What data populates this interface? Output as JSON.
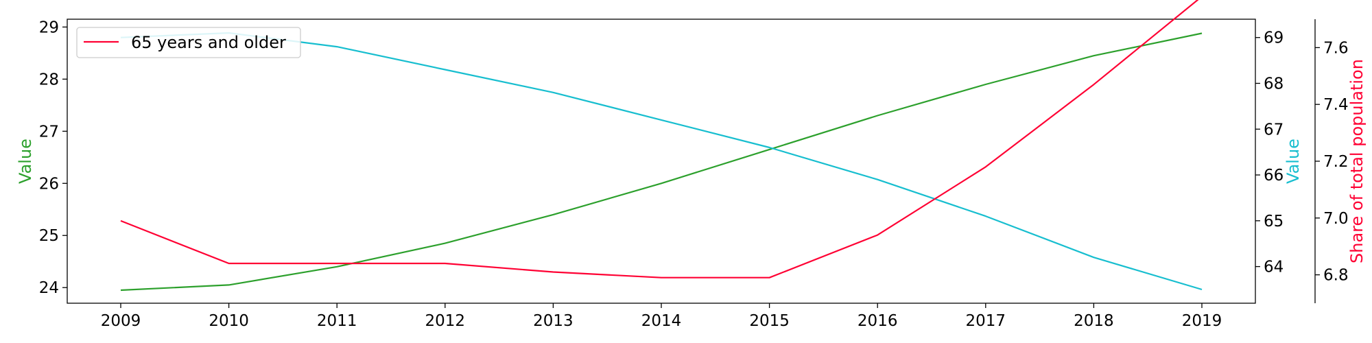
{
  "chart_data": {
    "type": "line",
    "x": [
      "2009",
      "2010",
      "2011",
      "2012",
      "2013",
      "2014",
      "2015",
      "2016",
      "2017",
      "2018",
      "2019"
    ],
    "title": "",
    "xlabel": "",
    "grid": false,
    "legend": {
      "placement": "top-left",
      "entries": [
        "65 years and older"
      ]
    },
    "axes": {
      "left": {
        "label": "Value",
        "color": "#2ca02c",
        "range": [
          23.7,
          29.15
        ],
        "ticks": [
          24,
          25,
          26,
          27,
          28,
          29
        ]
      },
      "right": {
        "label": "Value",
        "color": "#17becf",
        "range": [
          63.2,
          69.4
        ],
        "ticks": [
          64,
          65,
          66,
          67,
          68,
          69
        ]
      },
      "outer": {
        "label": "Share of total population",
        "color": "#ff0033",
        "range": [
          6.7,
          7.7
        ],
        "ticks": [
          "6.8",
          "7.0",
          "7.2",
          "7.4",
          "7.6"
        ]
      }
    },
    "series": [
      {
        "axis": "left",
        "color": "#2ca02c",
        "values": [
          23.95,
          24.05,
          24.4,
          24.85,
          25.4,
          26.0,
          26.65,
          27.3,
          27.9,
          28.45,
          28.88
        ]
      },
      {
        "axis": "right",
        "color": "#17becf",
        "values": [
          69.0,
          69.1,
          68.8,
          68.3,
          67.8,
          67.2,
          66.6,
          65.9,
          65.1,
          64.2,
          63.5
        ]
      },
      {
        "name": "65 years and older",
        "axis": "outer",
        "color": "#ff0033",
        "values": [
          6.99,
          6.84,
          6.84,
          6.84,
          6.81,
          6.79,
          6.79,
          6.94,
          7.18,
          7.47,
          7.78
        ]
      }
    ]
  }
}
